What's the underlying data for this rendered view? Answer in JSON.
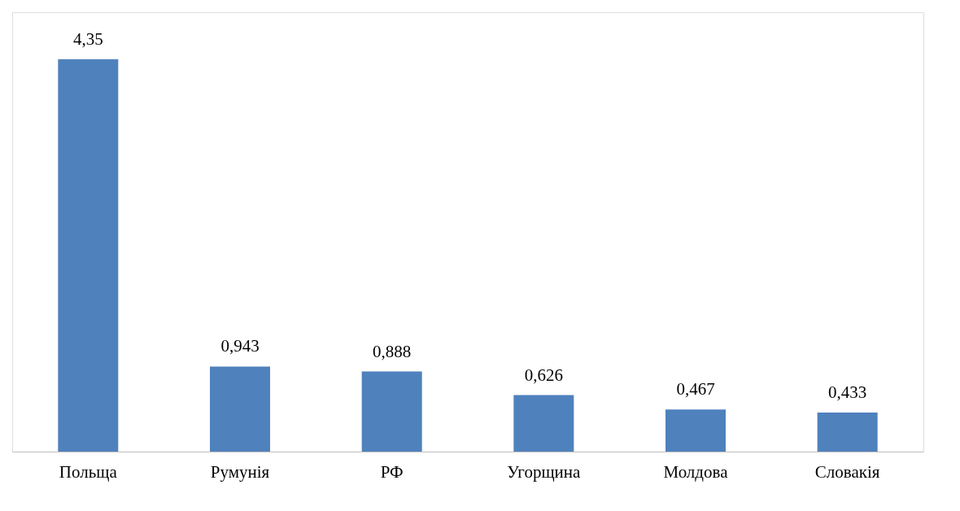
{
  "chart_data": {
    "type": "bar",
    "categories": [
      "Польща",
      "Румунія",
      "РФ",
      "Угорщина",
      "Молдова",
      "Словакія"
    ],
    "values": [
      4.35,
      0.943,
      0.888,
      0.626,
      0.467,
      0.433
    ],
    "value_labels": [
      "4,35",
      "0,943",
      "0,888",
      "0,626",
      "0,467",
      "0,433"
    ],
    "color": "#4f81bd",
    "grid": false
  }
}
